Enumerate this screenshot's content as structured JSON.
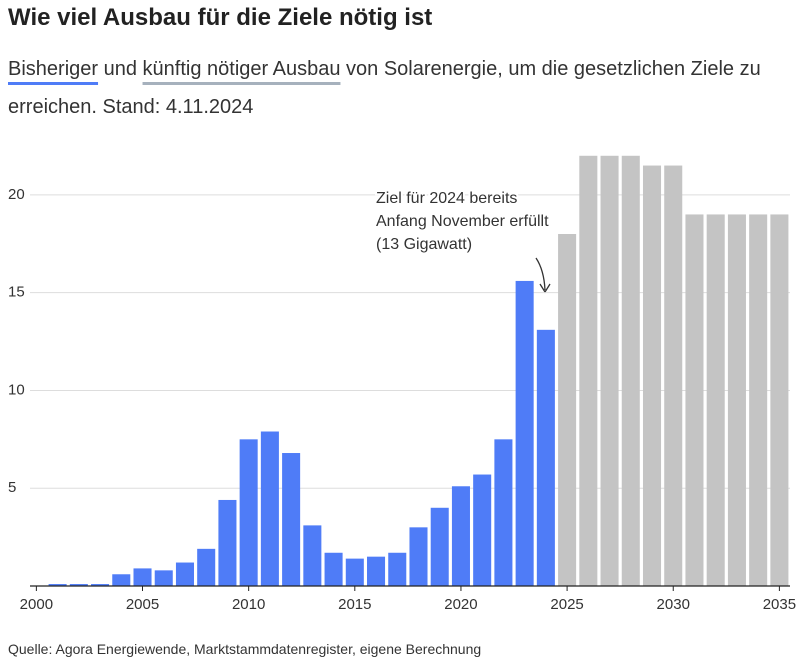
{
  "chart_data": {
    "type": "bar",
    "title": "Wie viel Ausbau für die Ziele nötig ist",
    "subtitle": [
      " und ",
      " von Solarenergie, um die gesetzlichen Ziele zu erreichen. Stand: 4.11.2024"
    ],
    "series": [
      {
        "name": "Bisheriger",
        "color": "#4f7cf7",
        "x": [
          2001,
          2002,
          2003,
          2004,
          2005,
          2006,
          2007,
          2008,
          2009,
          2010,
          2011,
          2012,
          2013,
          2014,
          2015,
          2016,
          2017,
          2018,
          2019,
          2020,
          2021,
          2022,
          2023,
          2024
        ],
        "values": [
          0.1,
          0.1,
          0.1,
          0.6,
          0.9,
          0.8,
          1.2,
          1.9,
          4.4,
          7.5,
          7.9,
          6.8,
          3.1,
          1.7,
          1.4,
          1.5,
          1.7,
          3.0,
          4.0,
          5.1,
          5.7,
          7.5,
          15.6,
          13.1
        ]
      },
      {
        "name": "künftig nötiger Ausbau",
        "color": "#c4c4c4",
        "x": [
          2025,
          2026,
          2027,
          2028,
          2029,
          2030,
          2031,
          2032,
          2033,
          2034,
          2035
        ],
        "values": [
          18,
          22,
          22,
          22,
          21.5,
          21.5,
          19,
          19,
          19,
          19,
          19
        ]
      }
    ],
    "annotation": [
      "Ziel für 2024 bereits",
      "Anfang November erfüllt",
      "(13 Gigawatt)"
    ],
    "xlim": [
      1999.7,
      2035.5
    ],
    "xticks": [
      2000,
      2005,
      2010,
      2015,
      2020,
      2025,
      2030,
      2035
    ],
    "ylim": [
      0,
      22.5
    ],
    "yticks": [
      5,
      10,
      15,
      20
    ],
    "grid": true,
    "source": "Quelle: Agora Energiewende, Marktstammdatenregister, eigene Berechnung"
  }
}
